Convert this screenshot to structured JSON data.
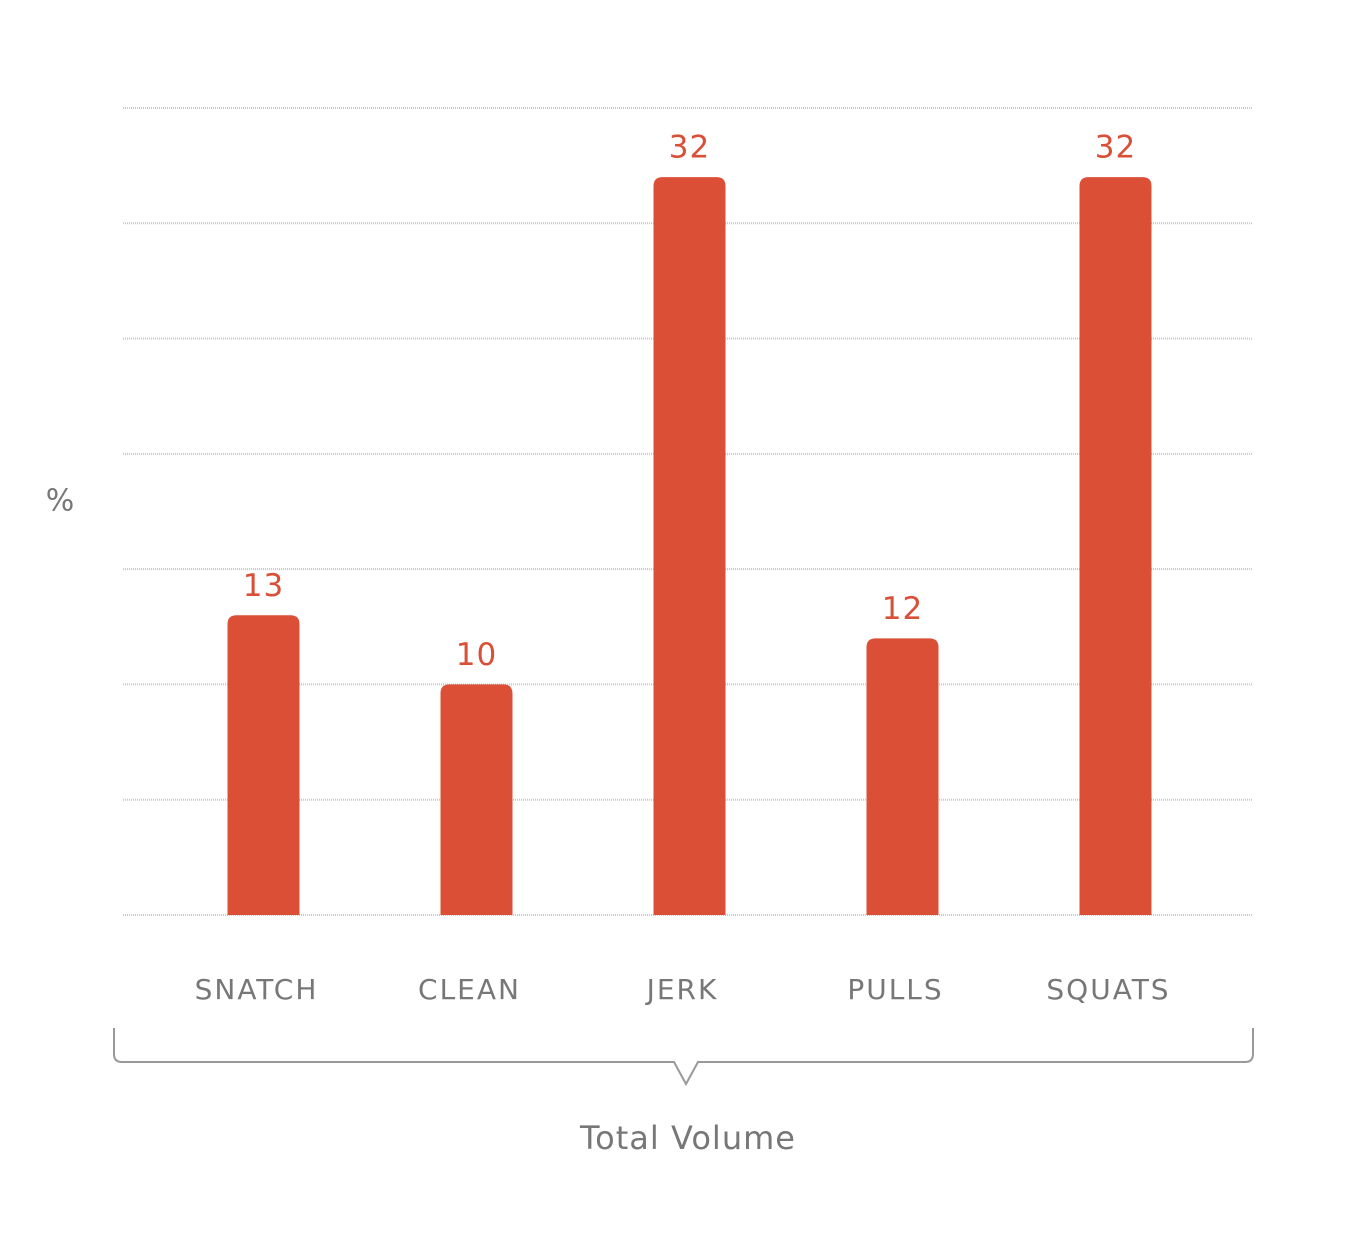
{
  "chart_data": {
    "type": "bar",
    "title": "Total Volume",
    "y_label": "%",
    "categories": [
      "SNATCH",
      "CLEAN",
      "JERK",
      "PULLS",
      "SQUATS"
    ],
    "values": [
      13,
      10,
      32,
      12,
      32
    ],
    "color": "#dc4f37",
    "ylim": [
      0,
      35
    ],
    "yticks": [
      0,
      5,
      10,
      15,
      20,
      25,
      30,
      35
    ],
    "grid": true
  }
}
